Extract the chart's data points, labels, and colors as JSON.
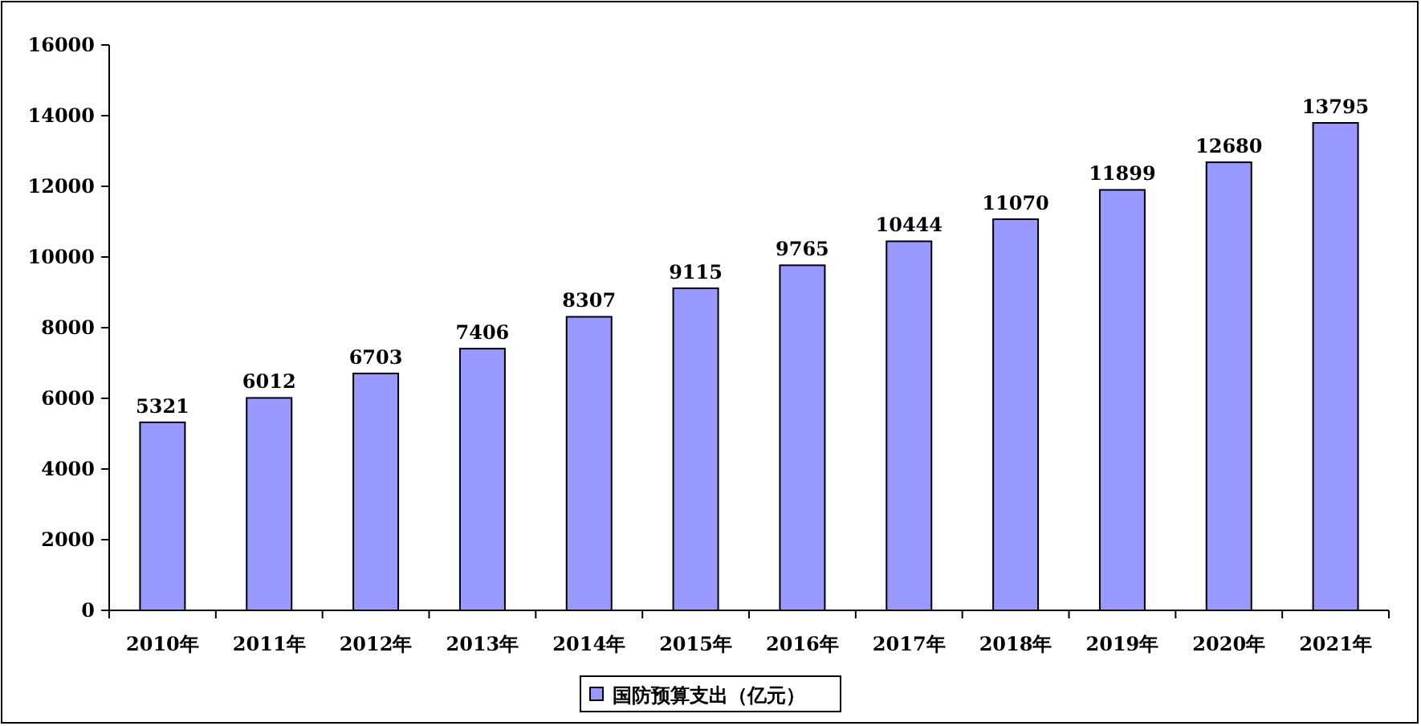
{
  "chart_data": {
    "type": "bar",
    "categories": [
      "2010年",
      "2011年",
      "2012年",
      "2013年",
      "2014年",
      "2015年",
      "2016年",
      "2017年",
      "2018年",
      "2019年",
      "2020年",
      "2021年"
    ],
    "series": [
      {
        "name": "国防预算支出（亿元）",
        "color": "#9999ff",
        "values": [
          5321,
          6012,
          6703,
          7406,
          8307,
          9115,
          9765,
          10444,
          11070,
          11899,
          12680,
          13795
        ]
      }
    ],
    "ylim": [
      0,
      16000
    ],
    "yticks": [
      0,
      2000,
      4000,
      6000,
      8000,
      10000,
      12000,
      14000,
      16000
    ],
    "data_labels": true,
    "legend": "bottom"
  }
}
